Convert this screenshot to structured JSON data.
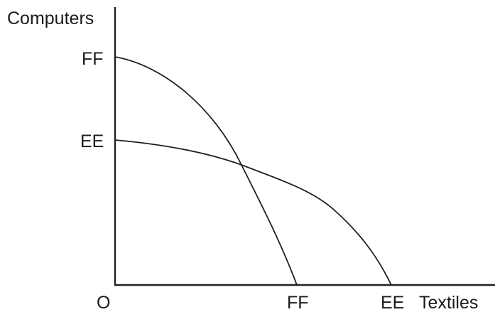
{
  "axes": {
    "y_label": "Computers",
    "x_label": "Textiles",
    "origin_label": "O"
  },
  "y_ticks": {
    "ff": "FF",
    "ee": "EE"
  },
  "x_ticks": {
    "ff": "FF",
    "ee": "EE"
  },
  "colors": {
    "line": "#231f20",
    "text": "#1a1a1a",
    "background": "#ffffff"
  }
}
